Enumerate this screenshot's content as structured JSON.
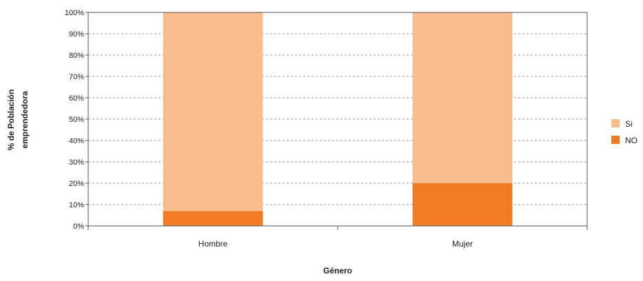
{
  "chart_data": {
    "type": "bar",
    "stacked": true,
    "percent_scale": true,
    "categories": [
      "Hombre",
      "Mujer"
    ],
    "series": [
      {
        "name": "NO",
        "values": [
          7,
          20
        ],
        "color": "#f07b23"
      },
      {
        "name": "Si",
        "values": [
          93,
          80
        ],
        "color": "#f8bc8f"
      }
    ],
    "xlabel": "Género",
    "ylabel_lines": [
      "% de Población",
      "emprendedora"
    ],
    "yticks": [
      "0%",
      "10%",
      "20%",
      "30%",
      "40%",
      "50%",
      "60%",
      "70%",
      "80%",
      "90%",
      "100%"
    ],
    "ylim": [
      0,
      100
    ],
    "grid": true,
    "grid_style": "dashed",
    "legend_position": "right",
    "legend_order": [
      "Si",
      "NO"
    ]
  }
}
